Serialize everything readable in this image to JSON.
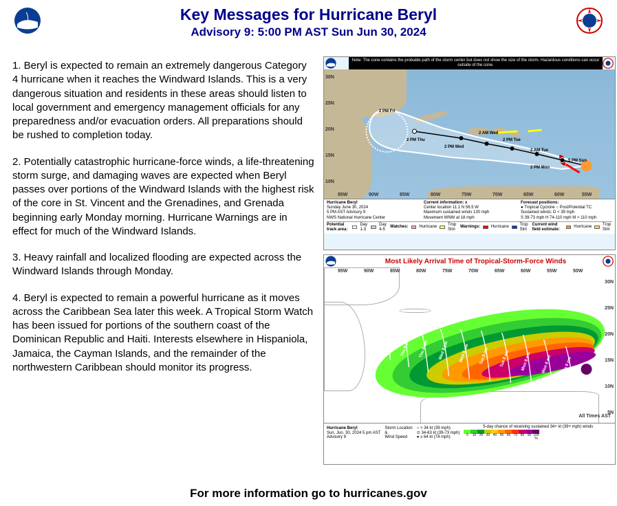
{
  "header": {
    "title": "Key Messages for Hurricane Beryl",
    "subtitle": "Advisory 9: 5:00 PM AST Sun Jun 30, 2024"
  },
  "messages": [
    "1. Beryl is expected to remain an extremely dangerous Category 4 hurricane when it reaches the Windward Islands. This is a very dangerous situation and residents in these areas should listen to local government and emergency management officials for any preparedness and/or evacuation orders. All preparations should be rushed to completion today.",
    "2. Potentially catastrophic hurricane-force winds, a life-threatening storm surge, and damaging waves are expected when Beryl passes over portions of the Windward Islands with the highest risk of the core in St. Vincent and the Grenadines, and Grenada beginning early Monday morning.  Hurricane Warnings are in effect for much of the Windward Islands.",
    "3. Heavy rainfall and localized flooding are expected across the Windward Islands through Monday.",
    "4. Beryl is expected to remain a powerful hurricane as it moves across the Caribbean Sea later this week.  A Tropical Storm Watch has been issued for portions of the southern coast of the Dominican Republic and Haiti. Interests elsewhere in Hispaniola, Jamaica, the Cayman Islands, and the remainder of the northwestern Caribbean should monitor its progress."
  ],
  "cone_map": {
    "note": "Note: The cone contains the probable path of the storm center but does not show the size of the storm. Hazardous conditions can occur outside of the cone.",
    "lat_ticks": [
      "30N",
      "25N",
      "20N",
      "15N",
      "10N"
    ],
    "lon_ticks": [
      "95W",
      "90W",
      "85W",
      "80W",
      "75W",
      "70W",
      "65W",
      "60W",
      "55W"
    ],
    "track_times": [
      "5 PM Sun",
      "2 PM Mon",
      "2 AM Tue",
      "2 PM Tue",
      "2 AM Wed",
      "2 PM Wed",
      "2 PM Thu",
      "2 PM Fri"
    ],
    "info": {
      "name": "Hurricane Beryl",
      "date": "Sunday June 30, 2024",
      "adv": "5 PM AST Advisory 9",
      "src": "NWS National Hurricane Center",
      "center": "Center location 11.1 N 56.5 W",
      "wind": "Maximum sustained winds 130 mph",
      "move": "Movement WNW at 18 mph",
      "cur_info_label": "Current information: x",
      "fcst_label": "Forecast positions:",
      "fcst1": "● Tropical Cyclone   ○ Post/Potential TC",
      "fcst2": "Sustained winds:     D < 39 mph",
      "fcst3": "S 39-73 mph  H 74-110 mph  M > 110 mph"
    },
    "legend": {
      "pta_label": "Potential track area:",
      "pta_items": [
        "Day 1-3",
        "Day 4-5"
      ],
      "watches_label": "Watches:",
      "warnings_label": "Warnings:",
      "wfe_label": "Current wind field estimate:",
      "hurricane": "Hurricane",
      "tropstm": "Trop Stm"
    },
    "colors": {
      "ocean": "#8cb8d8",
      "land": "#c5b896",
      "cone": "#ffffff",
      "hurricane_watch": "#ff99cc",
      "tropstm_watch": "#ffff66",
      "hurricane_warn": "#ff0000",
      "tropstm_warn": "#0033cc",
      "wind_hurr": "#ff9933",
      "wind_ts": "#ffcc66"
    }
  },
  "arrival_map": {
    "title": "Most Likely Arrival Time of Tropical-Storm-Force Winds",
    "lon_ticks": [
      "95W",
      "90W",
      "85W",
      "80W",
      "75W",
      "70W",
      "65W",
      "60W",
      "55W",
      "50W"
    ],
    "lat_ticks": [
      "30N",
      "25N",
      "20N",
      "15N",
      "10N",
      "5N"
    ],
    "times_note": "All Times AST",
    "time_bands": [
      "Sun 8 pm",
      "Mon 8 am",
      "Mon 8 pm",
      "Tue 8 am",
      "Tue 8 pm",
      "Wed 8 am",
      "Wed 8 pm",
      "Thu 8 am",
      "Thu 8 pm",
      "Fri, 9"
    ],
    "footer": {
      "name": "Hurricane Beryl",
      "date": "Sun. Jun. 30, 2024   5 pm AST",
      "adv": "Advisory 9",
      "storm_loc": "Storm Location",
      "ws": "Wind Speed",
      "w1": "> 34 kt (39 mph)",
      "w2": "34-63 kt (39-73 mph)",
      "w3": "≥ 64 kt (74 mph)",
      "prob_label": "5-day chance of receiving sustained 34+ kt (39+ mph) winds",
      "prob_vals": [
        "5",
        "10",
        "20",
        "30",
        "40",
        "50",
        "60",
        "70",
        "80",
        "90",
        "100 %"
      ]
    },
    "prob_colors": [
      "#66ff33",
      "#33cc33",
      "#009933",
      "#cccc00",
      "#ffcc00",
      "#ff9900",
      "#ff6600",
      "#ff3300",
      "#cc0066",
      "#990099",
      "#660066"
    ]
  },
  "footer": "For more information go to hurricanes.gov"
}
